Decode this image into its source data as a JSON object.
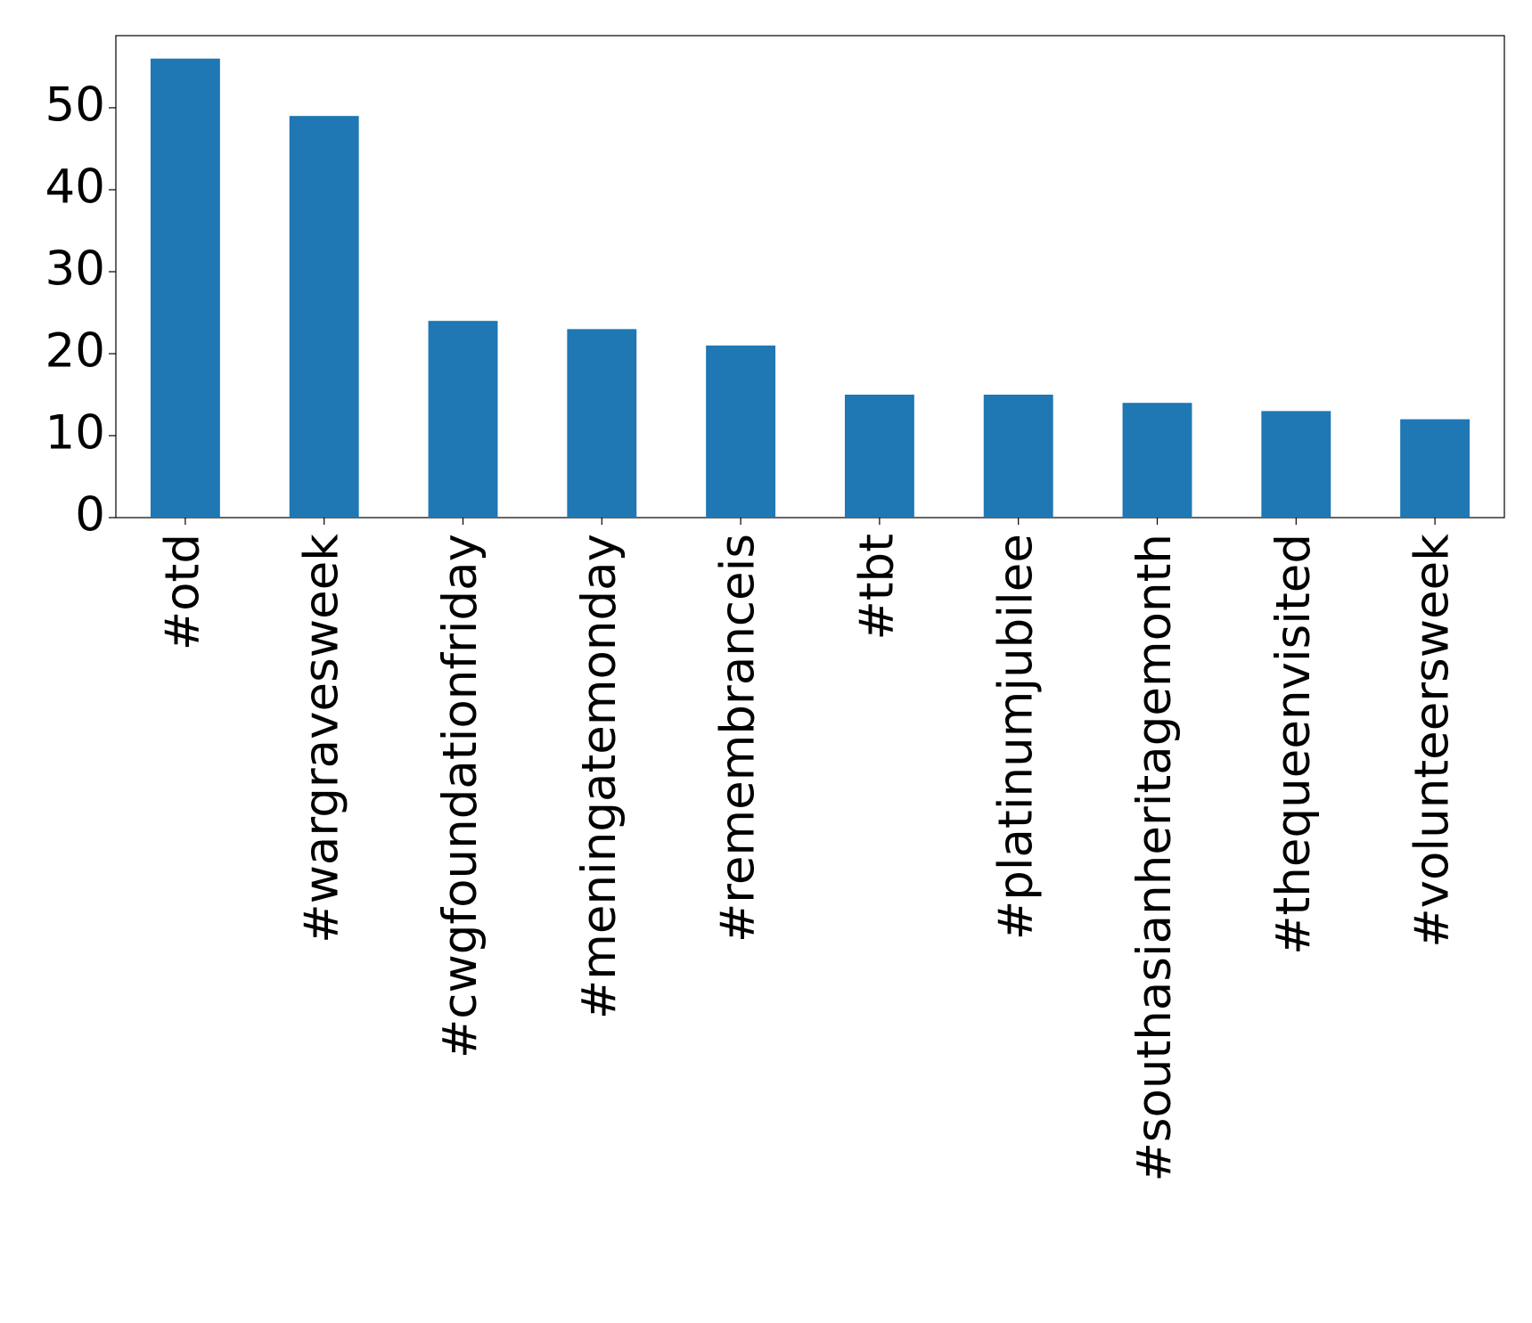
{
  "chart_data": {
    "type": "bar",
    "categories": [
      "#otd",
      "#wargravesweek",
      "#cwgfoundationfriday",
      "#meningatemonday",
      "#remembranceis",
      "#tbt",
      "#platinumjubilee",
      "#southasianheritagemonth",
      "#thequeenvisited",
      "#volunteersweek"
    ],
    "values": [
      56,
      49,
      24,
      23,
      21,
      15,
      15,
      14,
      13,
      12
    ],
    "color": "#1f77b4",
    "ylim": [
      0,
      58.8
    ],
    "yticks": [
      0,
      10,
      20,
      30,
      40,
      50
    ],
    "grid": false
  }
}
